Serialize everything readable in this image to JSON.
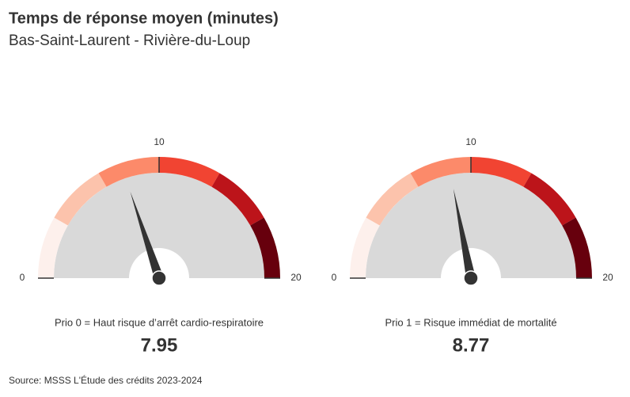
{
  "title": "Temps de réponse moyen (minutes)",
  "subtitle": "Bas-Saint-Laurent - Rivière-du-Loup",
  "source": "Source: MSSS L'Étude des crédits 2023-2024",
  "chart_data": [
    {
      "type": "gauge",
      "label": "Prio 0 = Haut risque d’arrêt cardio-respiratoire",
      "value": 7.95,
      "xlim": [
        0,
        20
      ],
      "xticks": [
        0,
        10,
        20
      ],
      "band_edges": [
        0,
        3.33,
        6.67,
        10,
        13.33,
        16.67,
        20
      ],
      "band_colors": [
        "#fdf0ec",
        "#fcc3ac",
        "#fc8a6a",
        "#f14432",
        "#bc141a",
        "#67000d"
      ],
      "needle_color": "#333333",
      "face_color": "#d9d9d9"
    },
    {
      "type": "gauge",
      "label": "Prio 1 = Risque immédiat de mortalité",
      "value": 8.77,
      "xlim": [
        0,
        20
      ],
      "xticks": [
        0,
        10,
        20
      ],
      "band_edges": [
        0,
        3.33,
        6.67,
        10,
        13.33,
        16.67,
        20
      ],
      "band_colors": [
        "#fdf0ec",
        "#fcc3ac",
        "#fc8a6a",
        "#f14432",
        "#bc141a",
        "#67000d"
      ],
      "needle_color": "#333333",
      "face_color": "#d9d9d9"
    }
  ]
}
